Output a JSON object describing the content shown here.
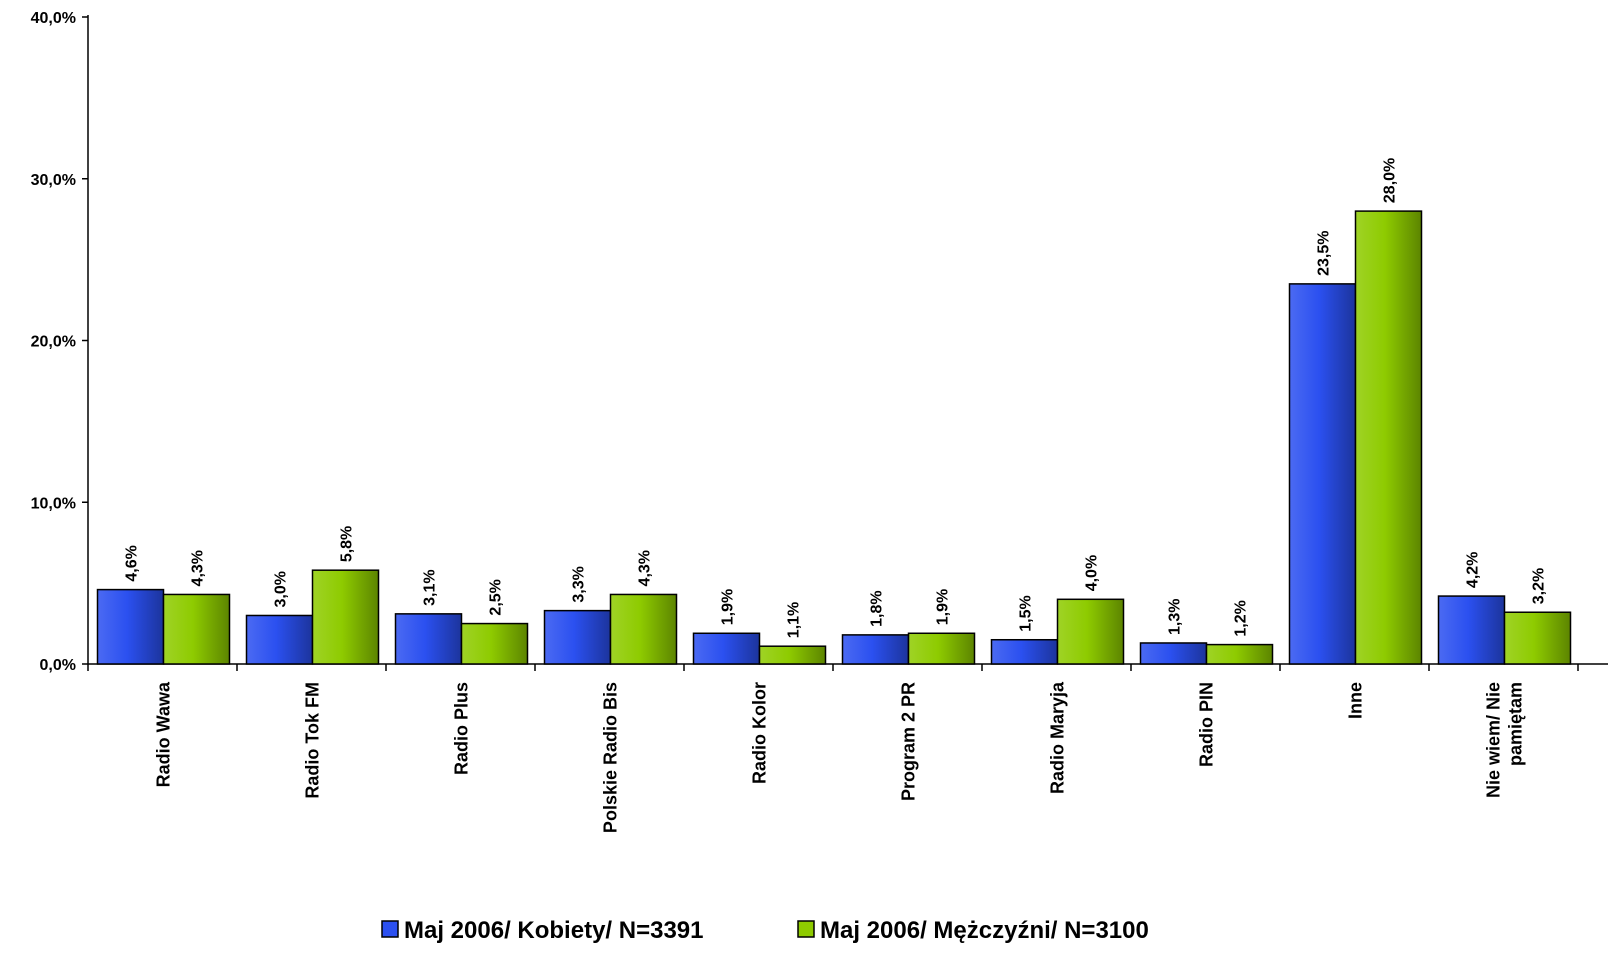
{
  "chart_data": {
    "type": "bar",
    "categories": [
      [
        "Radio Wawa"
      ],
      [
        "Radio Tok FM"
      ],
      [
        "Radio Plus"
      ],
      [
        "Polskie Radio Bis"
      ],
      [
        "Radio Kolor"
      ],
      [
        "Program 2 PR"
      ],
      [
        "Radio Maryja"
      ],
      [
        "Radio PIN"
      ],
      [
        "Inne"
      ],
      [
        "Nie wiem/ Nie",
        "pamiętam"
      ]
    ],
    "series": [
      {
        "name": "Maj 2006/ Kobiety/ N=3391",
        "color": "#2b50f0",
        "values": [
          4.6,
          3.0,
          3.1,
          3.3,
          1.9,
          1.8,
          1.5,
          1.3,
          23.5,
          4.2
        ],
        "labels": [
          "4,6%",
          "3,0%",
          "3,1%",
          "3,3%",
          "1,9%",
          "1,8%",
          "1,5%",
          "1,3%",
          "23,5%",
          "4,2%"
        ]
      },
      {
        "name": "Maj 2006/ Mężczyźni/ N=3100",
        "color": "#8ecb00",
        "values": [
          4.3,
          5.8,
          2.5,
          4.3,
          1.1,
          1.9,
          4.0,
          1.2,
          28.0,
          3.2
        ],
        "labels": [
          "4,3%",
          "5,8%",
          "2,5%",
          "4,3%",
          "1,1%",
          "1,9%",
          "4,0%",
          "1,2%",
          "28,0%",
          "3,2%"
        ]
      }
    ],
    "ylim": [
      0,
      40
    ],
    "yticks": [
      0,
      10,
      20,
      30,
      40
    ],
    "ytick_labels": [
      "0,0%",
      "10,0%",
      "20,0%",
      "30,0%",
      "40,0%"
    ],
    "grid": false,
    "legend_position": "bottom"
  }
}
